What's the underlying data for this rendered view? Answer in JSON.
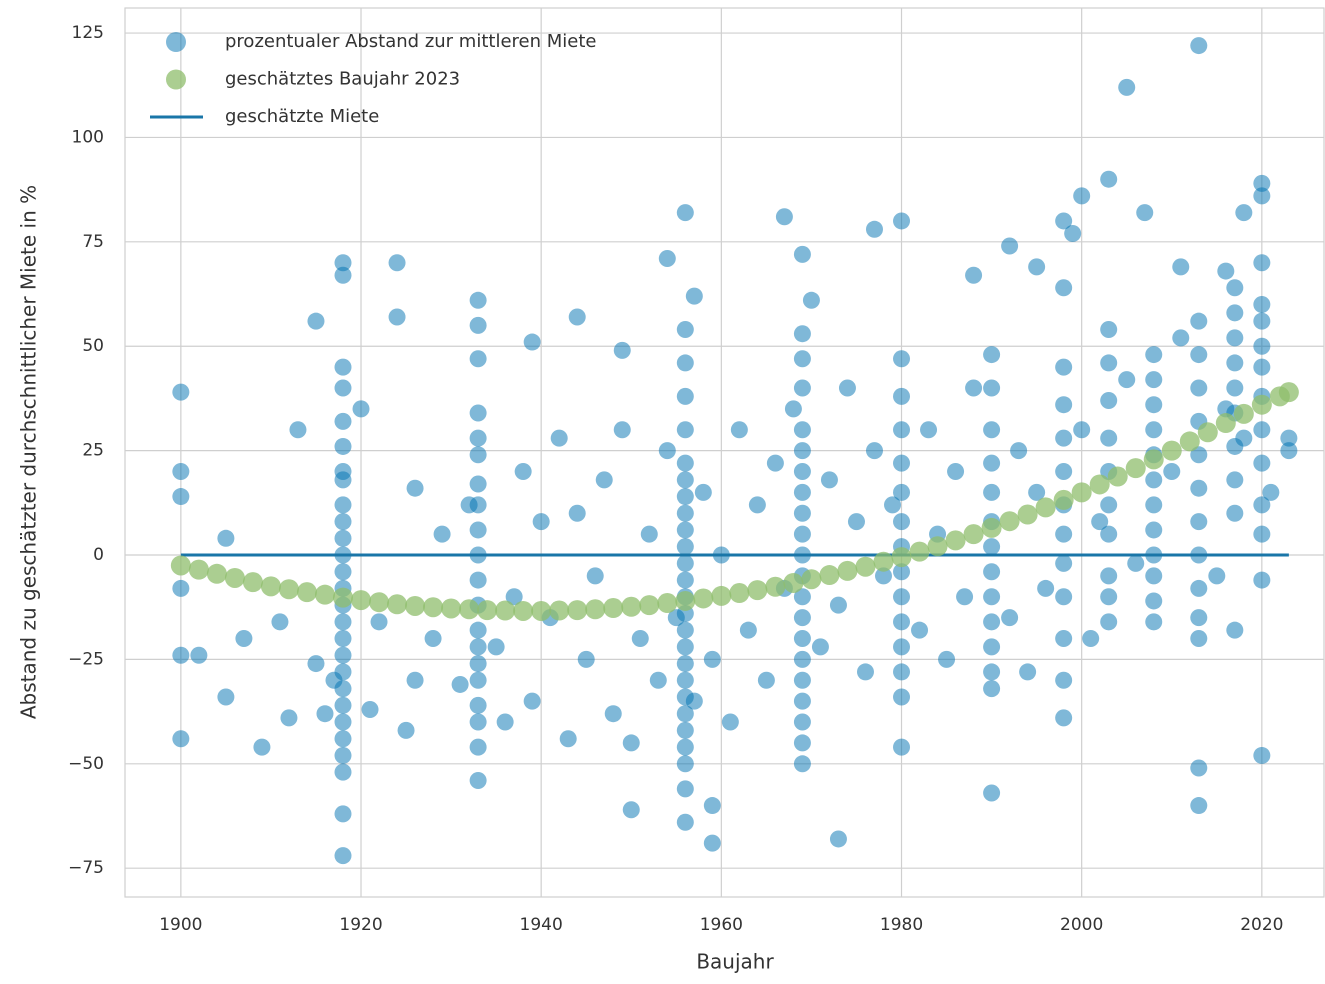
{
  "chart_data": {
    "type": "scatter",
    "xlabel": "Baujahr",
    "ylabel": "Abstand zu geschätzter durchschnittlicher Miete in %",
    "xlim": [
      1893.8,
      2026.9
    ],
    "ylim": [
      -81.9,
      131
    ],
    "xticks": [
      1900,
      1920,
      1940,
      1960,
      1980,
      2000,
      2020
    ],
    "yticks": [
      {
        "value": -75,
        "label": "−75"
      },
      {
        "value": -50,
        "label": "−50"
      },
      {
        "value": -25,
        "label": "−25"
      },
      0,
      25,
      50,
      75,
      100,
      125
    ],
    "grid": true,
    "legend": "upper left",
    "series": [
      {
        "name": "prozentualer Abstand zur mittleren Miete",
        "color": "#0072b2",
        "alpha": 0.5,
        "mark": "dot",
        "x": [
          1900,
          1900,
          1900,
          1900,
          1900,
          1900,
          1902,
          1905,
          1905,
          1907,
          1909,
          1911,
          1912,
          1913,
          1915,
          1918,
          1918,
          1918,
          1918,
          1918,
          1918,
          1920,
          1924,
          1924,
          1926,
          1933,
          1933,
          1933,
          1933,
          1939,
          1944,
          1949,
          1950,
          1954,
          1956,
          1956,
          1957,
          1959,
          1959,
          1967,
          1969,
          1970,
          1973,
          1977,
          1980,
          1980,
          1988,
          1990,
          1992,
          1995,
          1998,
          1999,
          2000,
          2003,
          2005,
          2007,
          2011,
          2013,
          2013,
          2013,
          2016,
          2018,
          2020,
          2020,
          2020,
          2023,
          2023,
          1918,
          1918,
          1918,
          1918,
          1918,
          1918,
          1918,
          1918,
          1918,
          1918,
          1918,
          1918,
          1918,
          1918,
          1918,
          1918,
          1918,
          1918,
          1918,
          1918,
          1918,
          1933,
          1933,
          1933,
          1933,
          1933,
          1933,
          1933,
          1933,
          1933,
          1933,
          1933,
          1933,
          1933,
          1933,
          1933,
          1933,
          1956,
          1956,
          1956,
          1956,
          1956,
          1956,
          1956,
          1956,
          1956,
          1956,
          1956,
          1956,
          1956,
          1956,
          1956,
          1956,
          1956,
          1956,
          1956,
          1956,
          1956,
          1956,
          1956,
          1956,
          1969,
          1969,
          1969,
          1969,
          1969,
          1969,
          1969,
          1969,
          1969,
          1969,
          1969,
          1969,
          1969,
          1969,
          1969,
          1969,
          1969,
          1969,
          1969,
          1969,
          1980,
          1980,
          1980,
          1980,
          1980,
          1980,
          1980,
          1980,
          1980,
          1980,
          1980,
          1980,
          1980,
          1990,
          1990,
          1990,
          1990,
          1990,
          1990,
          1990,
          1990,
          1990,
          1990,
          1990,
          1990,
          1990,
          1998,
          1998,
          1998,
          1998,
          1998,
          1998,
          1998,
          1998,
          1998,
          1998,
          1998,
          1998,
          2003,
          2003,
          2003,
          2003,
          2003,
          2003,
          2003,
          2003,
          2003,
          2003,
          2008,
          2008,
          2008,
          2008,
          2008,
          2008,
          2008,
          2008,
          2008,
          2008,
          2008,
          2008,
          2013,
          2013,
          2013,
          2013,
          2013,
          2013,
          2013,
          2013,
          2013,
          2013,
          2013,
          2017,
          2017,
          2017,
          2017,
          2017,
          2017,
          2017,
          2017,
          2017,
          2017,
          2020,
          2020,
          2020,
          2020,
          2020,
          2020,
          2020,
          2020,
          2020,
          2020,
          2020,
          1915,
          1916,
          1917,
          1921,
          1922,
          1925,
          1926,
          1928,
          1929,
          1931,
          1932,
          1935,
          1936,
          1937,
          1938,
          1939,
          1940,
          1941,
          1942,
          1943,
          1944,
          1945,
          1946,
          1947,
          1948,
          1949,
          1950,
          1951,
          1952,
          1953,
          1954,
          1955,
          1957,
          1958,
          1959,
          1960,
          1961,
          1962,
          1963,
          1964,
          1965,
          1966,
          1967,
          1968,
          1971,
          1972,
          1973,
          1974,
          1975,
          1976,
          1977,
          1978,
          1979,
          1982,
          1983,
          1984,
          1985,
          1986,
          1987,
          1988,
          1992,
          1993,
          1994,
          1995,
          1996,
          2000,
          2001,
          2002,
          2005,
          2006,
          2010,
          2011,
          2015,
          2016,
          2018,
          2021
        ],
        "values": [
          39,
          20,
          14,
          -44,
          -24,
          -8,
          -24,
          4,
          -34,
          -20,
          -46,
          -16,
          -39,
          30,
          56,
          70,
          67,
          -72,
          -62,
          -52,
          45,
          35,
          70,
          57,
          16,
          61,
          55,
          47,
          -54,
          51,
          57,
          49,
          -61,
          71,
          82,
          -64,
          62,
          -69,
          -60,
          81,
          72,
          61,
          -68,
          78,
          80,
          -46,
          67,
          -57,
          74,
          69,
          80,
          77,
          86,
          90,
          112,
          82,
          69,
          122,
          -51,
          -60,
          68,
          82,
          89,
          86,
          -48,
          28,
          25,
          40,
          32,
          26,
          20,
          18,
          12,
          8,
          4,
          0,
          -4,
          -8,
          -12,
          -16,
          -20,
          -24,
          -28,
          -32,
          -36,
          -40,
          -44,
          -48,
          34,
          28,
          24,
          17,
          12,
          6,
          0,
          -6,
          -12,
          -18,
          -22,
          -26,
          -30,
          -36,
          -40,
          -46,
          54,
          46,
          38,
          30,
          22,
          18,
          14,
          10,
          6,
          2,
          -2,
          -6,
          -10,
          -14,
          -18,
          -22,
          -26,
          -30,
          -34,
          -38,
          -42,
          -46,
          -50,
          -56,
          53,
          47,
          40,
          30,
          25,
          20,
          15,
          10,
          5,
          0,
          -5,
          -10,
          -15,
          -20,
          -25,
          -30,
          -35,
          -40,
          -45,
          -50,
          47,
          38,
          30,
          22,
          15,
          8,
          2,
          -4,
          -10,
          -16,
          -22,
          -28,
          -34,
          48,
          40,
          30,
          22,
          15,
          8,
          2,
          -4,
          -10,
          -16,
          -22,
          -28,
          -32,
          64,
          45,
          36,
          28,
          20,
          12,
          5,
          -2,
          -10,
          -20,
          -30,
          -39,
          54,
          46,
          37,
          28,
          20,
          12,
          5,
          -5,
          -10,
          -16,
          48,
          42,
          36,
          30,
          24,
          18,
          12,
          6,
          0,
          -5,
          -11,
          -16,
          56,
          48,
          40,
          32,
          24,
          16,
          8,
          0,
          -8,
          -15,
          -20,
          64,
          58,
          52,
          46,
          40,
          34,
          26,
          18,
          10,
          -18,
          70,
          60,
          56,
          50,
          45,
          38,
          30,
          22,
          12,
          5,
          -6,
          -26,
          -38,
          -30,
          -37,
          -16,
          -42,
          -30,
          -20,
          5,
          -31,
          12,
          -22,
          -40,
          -10,
          20,
          -35,
          8,
          -15,
          28,
          -44,
          10,
          -25,
          -5,
          18,
          -38,
          30,
          -45,
          -20,
          5,
          -30,
          25,
          -15,
          -35,
          15,
          -25,
          0,
          -40,
          30,
          -18,
          12,
          -30,
          22,
          -8,
          35,
          -22,
          18,
          -12,
          40,
          8,
          -28,
          25,
          -5,
          12,
          -18,
          30,
          5,
          -25,
          20,
          -10,
          40,
          -15,
          25,
          -28,
          15,
          -8,
          30,
          -20,
          8,
          42,
          -2,
          20,
          52,
          -5,
          35,
          28,
          15
        ]
      },
      {
        "name": "geschätztes Baujahr 2023",
        "color": "#8fbd6c",
        "alpha": 0.75,
        "mark": "dot",
        "x": [
          1900,
          1902,
          1904,
          1906,
          1908,
          1910,
          1912,
          1914,
          1916,
          1918,
          1920,
          1922,
          1924,
          1926,
          1928,
          1930,
          1932,
          1934,
          1936,
          1938,
          1940,
          1942,
          1944,
          1946,
          1948,
          1950,
          1952,
          1954,
          1956,
          1958,
          1960,
          1962,
          1964,
          1966,
          1968,
          1970,
          1972,
          1974,
          1976,
          1978,
          1980,
          1982,
          1984,
          1986,
          1988,
          1990,
          1992,
          1994,
          1996,
          1998,
          2000,
          2002,
          2004,
          2006,
          2008,
          2010,
          2012,
          2014,
          2016,
          2018,
          2020,
          2022,
          2023
        ],
        "values": [
          -2.5,
          -3.5,
          -4.5,
          -5.5,
          -6.5,
          -7.5,
          -8.2,
          -8.9,
          -9.5,
          -10.2,
          -10.8,
          -11.3,
          -11.8,
          -12.2,
          -12.5,
          -12.8,
          -13.0,
          -13.2,
          -13.3,
          -13.4,
          -13.4,
          -13.3,
          -13.2,
          -13.0,
          -12.7,
          -12.4,
          -12.0,
          -11.5,
          -11.0,
          -10.4,
          -9.8,
          -9.1,
          -8.4,
          -7.6,
          -6.7,
          -5.8,
          -4.8,
          -3.8,
          -2.8,
          -1.6,
          -0.5,
          0.8,
          2.1,
          3.5,
          5.0,
          6.5,
          8.1,
          9.7,
          11.4,
          13.2,
          15.0,
          16.9,
          18.8,
          20.8,
          22.9,
          25.0,
          27.2,
          29.4,
          31.6,
          33.8,
          36.0,
          38.0,
          39.0
        ]
      },
      {
        "name": "geschätzte Miete",
        "color": "#1a76a8",
        "mark": "line",
        "x": [
          1900,
          2023
        ],
        "values": [
          0,
          0
        ]
      }
    ]
  }
}
